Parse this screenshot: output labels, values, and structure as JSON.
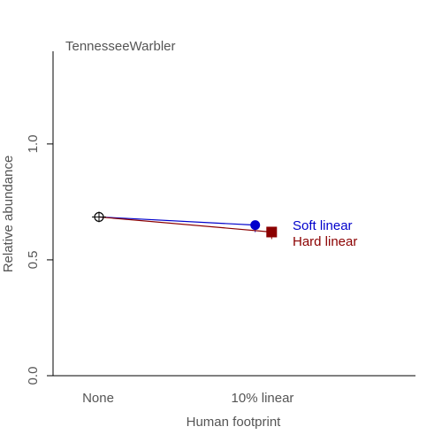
{
  "chart_data": {
    "type": "scatter",
    "title": "TennesseeWarbler",
    "xlabel": "Human footprint",
    "ylabel": "Relative abundance",
    "categories": [
      "None",
      "10% linear"
    ],
    "ylim": [
      0,
      1.4
    ],
    "yticks": [
      "0.0",
      "0.5",
      "1.0"
    ],
    "ytick_values": [
      0,
      0.5,
      1.0
    ],
    "grid": false,
    "baseline": {
      "category": "None",
      "value": 0.685
    },
    "series": [
      {
        "name": "Soft linear",
        "category": "10% linear",
        "x_offset": -0.1,
        "value": 0.65,
        "color": "#0000cc",
        "marker": "circle"
      },
      {
        "name": "Hard linear",
        "category": "10% linear",
        "x_offset": 0.1,
        "value": 0.62,
        "color": "#8b0000",
        "marker": "square"
      }
    ]
  }
}
